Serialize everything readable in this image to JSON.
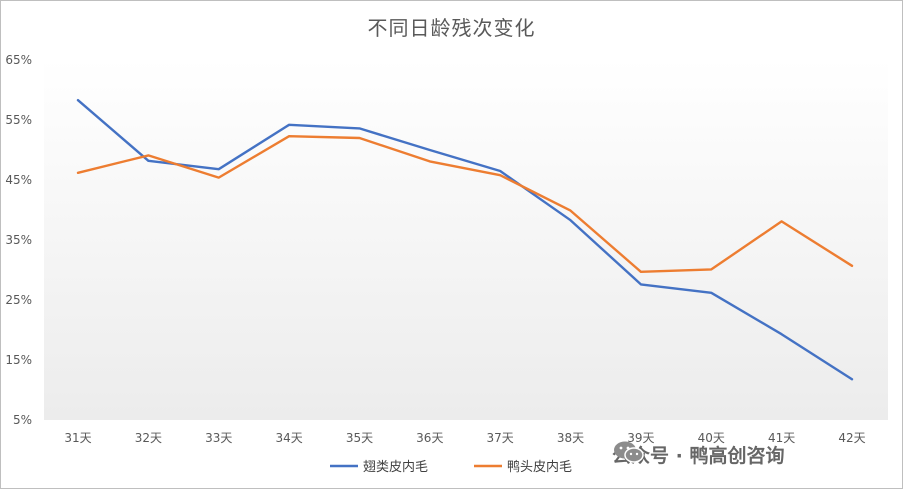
{
  "chart_data": {
    "type": "line",
    "title": "不同日龄残次变化",
    "categories": [
      "31天",
      "32天",
      "33天",
      "34天",
      "35天",
      "36天",
      "37天",
      "38天",
      "39天",
      "40天",
      "41天",
      "42天"
    ],
    "y_ticks": [
      "5%",
      "15%",
      "25%",
      "35%",
      "45%",
      "55%",
      "65%"
    ],
    "ylim": [
      5,
      65
    ],
    "unit": "%",
    "grid": false,
    "legend_position": "bottom",
    "series": [
      {
        "name": "翅类皮内毛",
        "color": "#4472C4",
        "values": [
          58.3,
          48.2,
          46.8,
          54.2,
          53.6,
          50.0,
          46.5,
          38.3,
          27.6,
          26.2,
          19.3,
          11.8
        ]
      },
      {
        "name": "鸭头皮内毛",
        "color": "#ED7D31",
        "values": [
          46.2,
          49.1,
          45.4,
          52.3,
          52.0,
          48.1,
          45.8,
          39.9,
          29.7,
          30.1,
          38.1,
          30.7
        ]
      }
    ]
  },
  "watermark": {
    "icon": "wechat-icon",
    "text": "公众号 · 鸭高创咨询"
  }
}
